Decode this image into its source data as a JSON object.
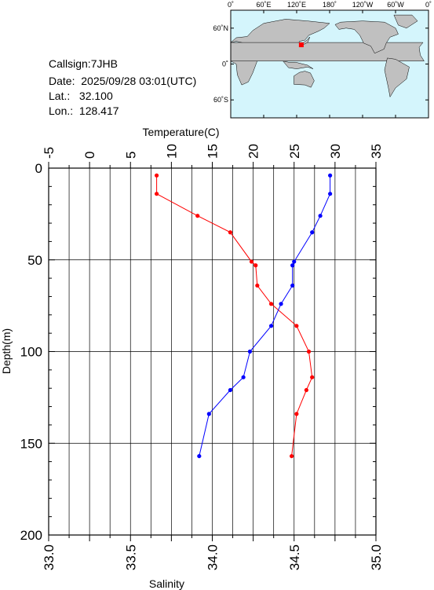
{
  "station": {
    "callsign": "Callsign:7JHB",
    "date": "Date:  2025/09/28 03:01(UTC)",
    "lat": "Lat.:   32.100",
    "lon": "Lon.:  128.417"
  },
  "map": {
    "lon_labels": [
      "0˚",
      "60˚E",
      "120˚E",
      "180˚",
      "120˚W",
      "60˚W",
      "0˚"
    ],
    "lat_labels": [
      "60˚N",
      "0˚",
      "60˚S"
    ],
    "marker": {
      "lat": 32.1,
      "lon": 128.417
    },
    "ocean_color": "#d4f5fc",
    "land_color": "#c0c0c0",
    "marker_color": "#ff0000"
  },
  "chart_data": {
    "type": "line",
    "title": "",
    "y": {
      "label": "Depth(m)",
      "range": [
        0,
        200
      ],
      "ticks": [
        0,
        50,
        100,
        150,
        200
      ],
      "inverted": true
    },
    "x_top": {
      "label": "Temperature(C)",
      "range": [
        -5,
        35
      ],
      "ticks": [
        -5,
        0,
        5,
        10,
        15,
        20,
        25,
        30,
        35
      ]
    },
    "x_bottom": {
      "label": "Salinity",
      "range": [
        33.0,
        35.0
      ],
      "ticks": [
        "33.0",
        "33.5",
        "34.0",
        "34.5",
        "35.0"
      ]
    },
    "grid": true,
    "series": [
      {
        "axis": "top",
        "color": "#ff0000",
        "depth": [
          4,
          14,
          26,
          35,
          51,
          53,
          64,
          74,
          86,
          100,
          114,
          121,
          134,
          157
        ],
        "values": [
          8.2,
          8.2,
          13.2,
          17.2,
          19.8,
          20.3,
          20.5,
          22.2,
          25.3,
          26.8,
          27.2,
          26.5,
          25.3,
          24.7
        ]
      },
      {
        "axis": "bottom",
        "color": "#0000ff",
        "depth": [
          4,
          14,
          26,
          35,
          51,
          53,
          64,
          74,
          86,
          100,
          114,
          121,
          134,
          157
        ],
        "values": [
          34.72,
          34.72,
          34.66,
          34.61,
          34.5,
          34.49,
          34.49,
          34.42,
          34.36,
          34.23,
          34.19,
          34.11,
          33.98,
          33.92
        ]
      }
    ]
  }
}
